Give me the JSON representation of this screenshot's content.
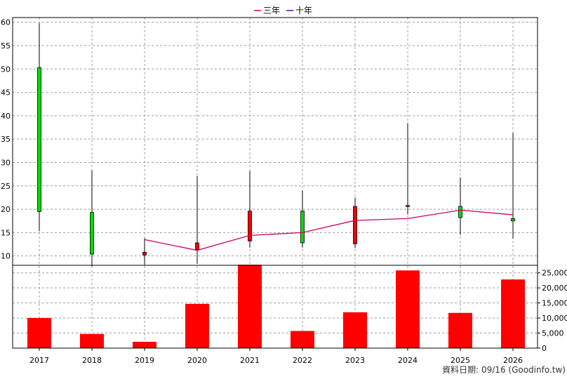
{
  "chart_data": {
    "type": "candlestick+bar",
    "legend": [
      {
        "label": "三年",
        "color": "#cc0066"
      },
      {
        "label": "十年",
        "color": "#660099"
      }
    ],
    "categories": [
      "2017",
      "2018",
      "2019",
      "2020",
      "2021",
      "2022",
      "2023",
      "2024",
      "2025",
      "2026"
    ],
    "price_axis": {
      "ylim": [
        8,
        61
      ],
      "ticks": [
        10,
        15,
        20,
        25,
        30,
        35,
        40,
        45,
        50,
        55,
        60
      ]
    },
    "candles": [
      {
        "year": "2017",
        "open": 50.3,
        "high": 59.8,
        "low": 15.3,
        "close": 19.5
      },
      {
        "year": "2018",
        "open": 19.3,
        "high": 28.3,
        "low": 7.8,
        "close": 10.4
      },
      {
        "year": "2019",
        "open": 10.2,
        "high": 13.8,
        "low": 8.1,
        "close": 10.8
      },
      {
        "year": "2020",
        "open": 11.4,
        "high": 27.1,
        "low": 8.3,
        "close": 12.8
      },
      {
        "year": "2021",
        "open": 13.2,
        "high": 28.2,
        "low": 11.8,
        "close": 19.6
      },
      {
        "year": "2022",
        "open": 19.6,
        "high": 24.0,
        "low": 11.8,
        "close": 12.8
      },
      {
        "year": "2023",
        "open": 12.6,
        "high": 22.5,
        "low": 11.7,
        "close": 20.6
      },
      {
        "year": "2024",
        "open": 20.8,
        "high": 38.4,
        "low": 18.9,
        "close": 20.8
      },
      {
        "year": "2025",
        "open": 20.6,
        "high": 26.8,
        "low": 14.5,
        "close": 18.2
      },
      {
        "year": "2026",
        "open": 18.0,
        "high": 36.3,
        "low": 13.7,
        "close": 17.5
      }
    ],
    "line_series": [
      {
        "name": "三年",
        "color": "#cc0066",
        "x": [
          "2019",
          "2020",
          "2021",
          "2022",
          "2023",
          "2024",
          "2025",
          "2026"
        ],
        "values": [
          13.5,
          11.2,
          14.4,
          15.0,
          17.6,
          18.0,
          19.8,
          18.8
        ]
      }
    ],
    "volume_axis": {
      "ylim": [
        0,
        27500
      ],
      "ticks": [
        0,
        5000,
        10000,
        15000,
        20000,
        25000
      ],
      "tick_labels": [
        "0",
        "5,000",
        "10,000",
        "15,000",
        "20,000",
        "25,000"
      ]
    },
    "volume": [
      10000,
      4700,
      2100,
      14700,
      27700,
      5700,
      11900,
      25800,
      11700,
      22800
    ],
    "grid": true
  },
  "footer": {
    "text": "資料日期: 09/16 (Goodinfo.tw)"
  },
  "colors": {
    "up": "#ff0000",
    "down": "#00dd00",
    "volume": "#ff0000",
    "grid": "#9a9a9a",
    "frame": "#000000"
  }
}
